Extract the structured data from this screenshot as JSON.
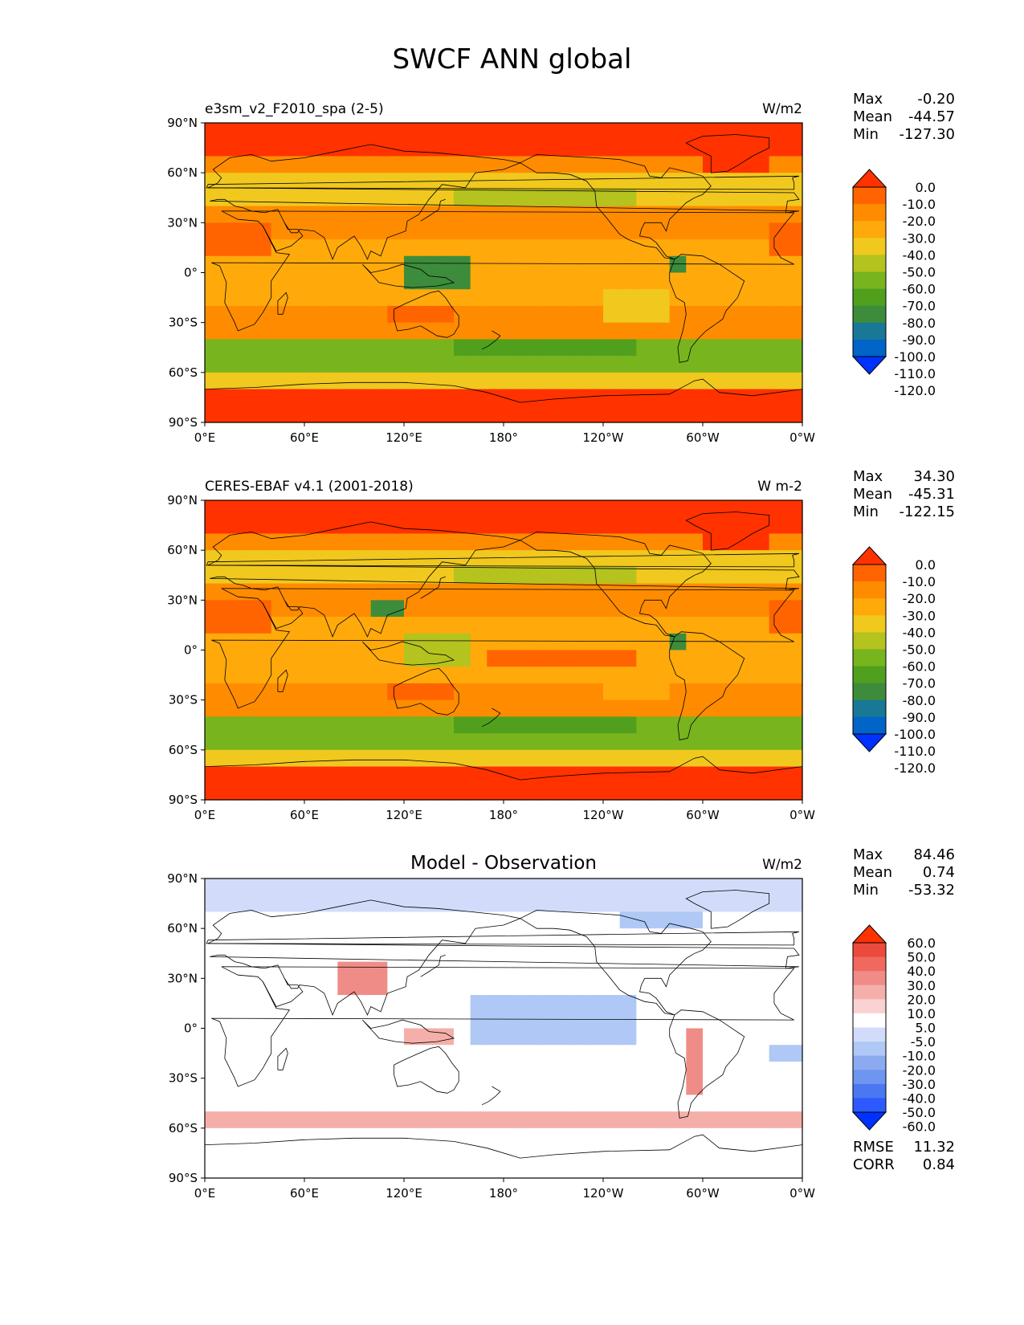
{
  "title": "SWCF ANN global",
  "colors": {
    "ceres_scale": [
      "#0032ff",
      "#0064c8",
      "#197896",
      "#3c8c3c",
      "#50a01e",
      "#78b41e",
      "#b4c31e",
      "#f0c81e",
      "#ffaa0a",
      "#ff8c00",
      "#ff6400",
      "#ff3200"
    ],
    "diff_scale": [
      "#0032ff",
      "#2d5aff",
      "#4b78f0",
      "#6e96f0",
      "#8caaf0",
      "#afc8f5",
      "#d2dcfa",
      "#ffffff",
      "#fad2d2",
      "#f5afaa",
      "#f08c87",
      "#f0695f",
      "#eb4b3c",
      "#ff3200"
    ],
    "land_outline": "#000000"
  },
  "panels": [
    {
      "left_title": "e3sm_v2_F2010_spa (2-5)",
      "center_title": "",
      "units": "W/m2",
      "stats": [
        {
          "label": "Max",
          "value": "-0.20"
        },
        {
          "label": "Mean",
          "value": "-44.57"
        },
        {
          "label": "Min",
          "value": "-127.30"
        }
      ],
      "colorbar_ticks": [
        "0.0",
        "-10.0",
        "-20.0",
        "-30.0",
        "-40.0",
        "-50.0",
        "-60.0",
        "-70.0",
        "-80.0",
        "-90.0",
        "-100.0",
        "-110.0",
        "-120.0"
      ],
      "scale": "ceres_scale",
      "extra_stats": []
    },
    {
      "left_title": "CERES-EBAF v4.1 (2001-2018)",
      "center_title": "",
      "units": "W m-2",
      "stats": [
        {
          "label": "Max",
          "value": "34.30"
        },
        {
          "label": "Mean",
          "value": "-45.31"
        },
        {
          "label": "Min",
          "value": "-122.15"
        }
      ],
      "colorbar_ticks": [
        "0.0",
        "-10.0",
        "-20.0",
        "-30.0",
        "-40.0",
        "-50.0",
        "-60.0",
        "-70.0",
        "-80.0",
        "-90.0",
        "-100.0",
        "-110.0",
        "-120.0"
      ],
      "scale": "ceres_scale",
      "extra_stats": []
    },
    {
      "left_title": "",
      "center_title": "Model - Observation",
      "units": "W/m2",
      "stats": [
        {
          "label": "Max",
          "value": "84.46"
        },
        {
          "label": "Mean",
          "value": "0.74"
        },
        {
          "label": "Min",
          "value": "-53.32"
        }
      ],
      "colorbar_ticks": [
        "60.0",
        "50.0",
        "40.0",
        "30.0",
        "20.0",
        "10.0",
        "5.0",
        "-5.0",
        "-10.0",
        "-20.0",
        "-30.0",
        "-40.0",
        "-50.0",
        "-60.0"
      ],
      "scale": "diff_scale",
      "extra_stats": [
        {
          "label": "RMSE",
          "value": "11.32"
        },
        {
          "label": "CORR",
          "value": "0.84"
        }
      ]
    }
  ],
  "lat_ticks": [
    "90°N",
    "60°N",
    "30°N",
    "0°",
    "30°S",
    "60°S",
    "90°S"
  ],
  "lon_ticks": [
    "0°E",
    "60°E",
    "120°E",
    "180°",
    "120°W",
    "60°W",
    "0°W"
  ]
}
